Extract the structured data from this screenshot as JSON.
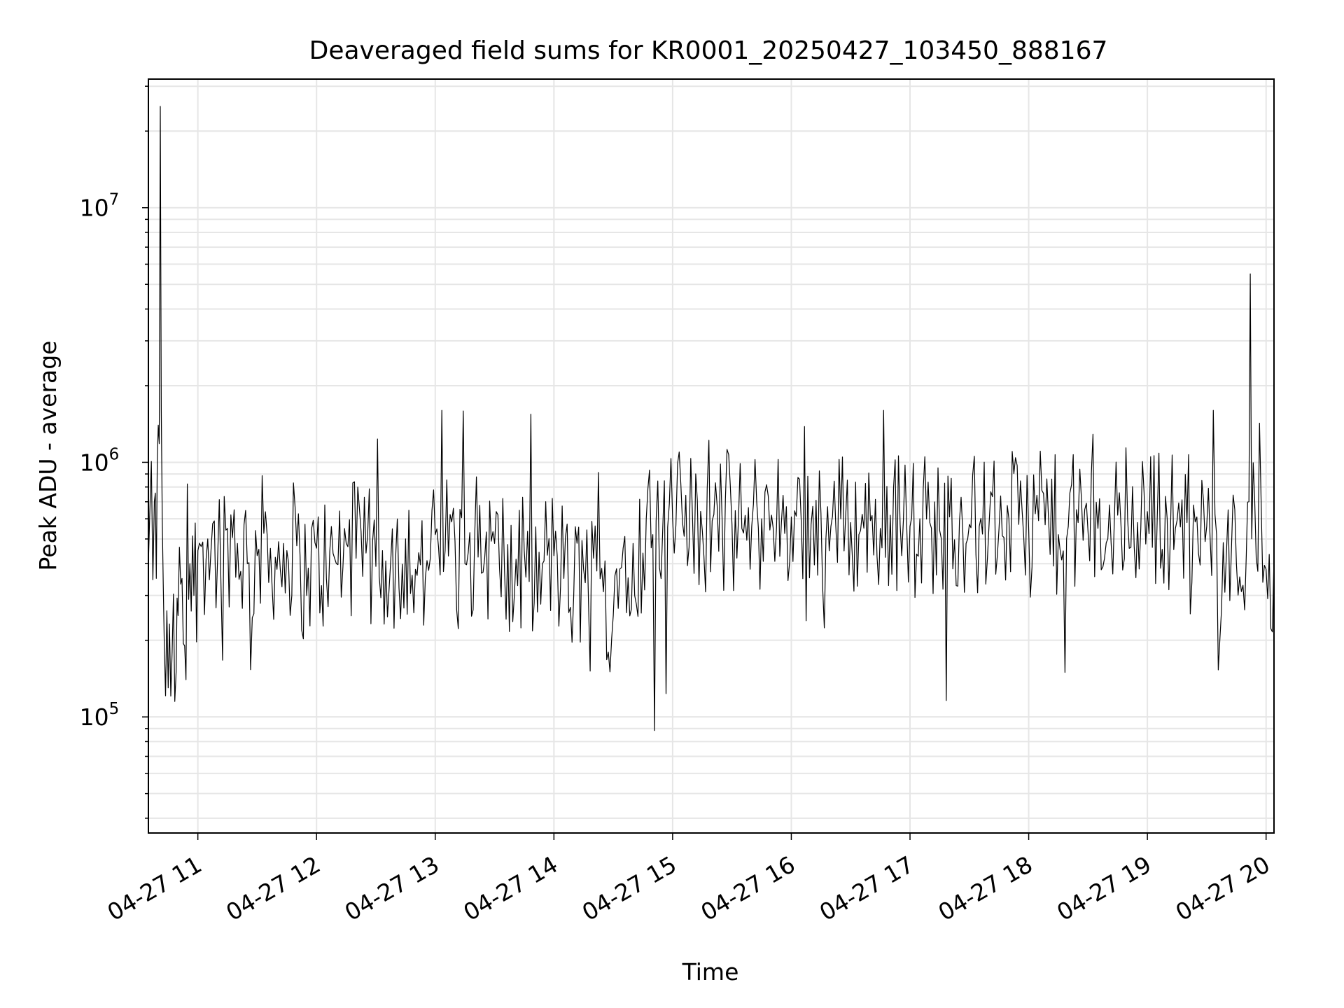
{
  "chart_data": {
    "type": "line",
    "title": "Deaveraged field sums for KR0001_20250427_103450_888167",
    "xlabel": "Time",
    "ylabel": "Peak ADU - average",
    "xlim": [
      "2025-04-27 10:35",
      "2025-04-27 20:04"
    ],
    "ylim": [
      35000,
      32000000
    ],
    "yscale": "log",
    "grid": true,
    "line_color": "#000000",
    "grid_color": "#e6e6e6",
    "x_ticks": [
      {
        "value": "2025-04-27 11:00",
        "label": "04-27 11"
      },
      {
        "value": "2025-04-27 12:00",
        "label": "04-27 12"
      },
      {
        "value": "2025-04-27 13:00",
        "label": "04-27 13"
      },
      {
        "value": "2025-04-27 14:00",
        "label": "04-27 14"
      },
      {
        "value": "2025-04-27 15:00",
        "label": "04-27 15"
      },
      {
        "value": "2025-04-27 16:00",
        "label": "04-27 16"
      },
      {
        "value": "2025-04-27 17:00",
        "label": "04-27 17"
      },
      {
        "value": "2025-04-27 18:00",
        "label": "04-27 18"
      },
      {
        "value": "2025-04-27 19:00",
        "label": "04-27 19"
      },
      {
        "value": "2025-04-27 20:00",
        "label": "04-27 20"
      }
    ],
    "y_ticks": [
      {
        "value": 100000,
        "base": "10",
        "exp": "5"
      },
      {
        "value": 1000000,
        "base": "10",
        "exp": "6"
      },
      {
        "value": 10000000,
        "base": "10",
        "exp": "7"
      }
    ],
    "series": [
      {
        "x": [
          "2025-04-27 10:35",
          "2025-04-27 10:38",
          "2025-04-27 10:39",
          "2025-04-27 10:40",
          "2025-04-27 10:41",
          "2025-04-27 10:42",
          "2025-04-27 10:43",
          "2025-04-27 10:45",
          "2025-04-27 10:47",
          "2025-04-27 10:49",
          "2025-04-27 10:50",
          "2025-04-27 10:52",
          "2025-04-27 10:54",
          "2025-04-27 10:56",
          "2025-04-27 10:58",
          "2025-04-27 11:00",
          "2025-04-27 11:05",
          "2025-04-27 11:10",
          "2025-04-27 11:15",
          "2025-04-27 11:20",
          "2025-04-27 11:25",
          "2025-04-27 11:30",
          "2025-04-27 11:35",
          "2025-04-27 11:40",
          "2025-04-27 11:45",
          "2025-04-27 11:50",
          "2025-04-27 11:55",
          "2025-04-27 12:00",
          "2025-04-27 12:05",
          "2025-04-27 12:10",
          "2025-04-27 12:15",
          "2025-04-27 12:20",
          "2025-04-27 12:25",
          "2025-04-27 12:30",
          "2025-04-27 12:35",
          "2025-04-27 12:40",
          "2025-04-27 12:45",
          "2025-04-27 12:50",
          "2025-04-27 12:55",
          "2025-04-27 13:00",
          "2025-04-27 13:05",
          "2025-04-27 13:10",
          "2025-04-27 13:15",
          "2025-04-27 13:20",
          "2025-04-27 13:25",
          "2025-04-27 13:30",
          "2025-04-27 13:35",
          "2025-04-27 13:40",
          "2025-04-27 13:45",
          "2025-04-27 13:50",
          "2025-04-27 13:55",
          "2025-04-27 14:00",
          "2025-04-27 14:05",
          "2025-04-27 14:10",
          "2025-04-27 14:15",
          "2025-04-27 14:20",
          "2025-04-27 14:25",
          "2025-04-27 14:30",
          "2025-04-27 14:35",
          "2025-04-27 14:40",
          "2025-04-27 14:45",
          "2025-04-27 14:50",
          "2025-04-27 14:55",
          "2025-04-27 15:00",
          "2025-04-27 15:05",
          "2025-04-27 15:10",
          "2025-04-27 15:15",
          "2025-04-27 15:20",
          "2025-04-27 15:25",
          "2025-04-27 15:30",
          "2025-04-27 15:35",
          "2025-04-27 15:40",
          "2025-04-27 15:45",
          "2025-04-27 15:50",
          "2025-04-27 15:55",
          "2025-04-27 16:00",
          "2025-04-27 16:05",
          "2025-04-27 16:10",
          "2025-04-27 16:15",
          "2025-04-27 16:20",
          "2025-04-27 16:25",
          "2025-04-27 16:30",
          "2025-04-27 16:35",
          "2025-04-27 16:40",
          "2025-04-27 16:45",
          "2025-04-27 16:50",
          "2025-04-27 16:55",
          "2025-04-27 17:00",
          "2025-04-27 17:05",
          "2025-04-27 17:10",
          "2025-04-27 17:15",
          "2025-04-27 17:20",
          "2025-04-27 17:25",
          "2025-04-27 17:30",
          "2025-04-27 17:35",
          "2025-04-27 17:40",
          "2025-04-27 17:45",
          "2025-04-27 17:50",
          "2025-04-27 17:55",
          "2025-04-27 18:00",
          "2025-04-27 18:05",
          "2025-04-27 18:10",
          "2025-04-27 18:15",
          "2025-04-27 18:20",
          "2025-04-27 18:25",
          "2025-04-27 18:30",
          "2025-04-27 18:35",
          "2025-04-27 18:40",
          "2025-04-27 18:45",
          "2025-04-27 18:50",
          "2025-04-27 18:55",
          "2025-04-27 19:00",
          "2025-04-27 19:05",
          "2025-04-27 19:10",
          "2025-04-27 19:15",
          "2025-04-27 19:20",
          "2025-04-27 19:25",
          "2025-04-27 19:30",
          "2025-04-27 19:35",
          "2025-04-27 19:40",
          "2025-04-27 19:45",
          "2025-04-27 19:50",
          "2025-04-27 19:52",
          "2025-04-27 19:55",
          "2025-04-27 20:00",
          "2025-04-27 20:04"
        ],
        "y": [
          400000,
          700000,
          350000,
          1400000,
          25000000,
          600000,
          200000,
          130000,
          180000,
          150000,
          250000,
          350000,
          140000,
          400000,
          300000,
          450000,
          500000,
          420000,
          550000,
          480000,
          400000,
          430000,
          520000,
          380000,
          450000,
          470000,
          300000,
          460000,
          350000,
          400000,
          480000,
          420000,
          440000,
          390000,
          410000,
          430000,
          500000,
          380000,
          350000,
          520000,
          450000,
          490000,
          400000,
          530000,
          420000,
          480000,
          380000,
          300000,
          450000,
          280000,
          410000,
          430000,
          350000,
          300000,
          380000,
          420000,
          310000,
          250000,
          460000,
          480000,
          440000,
          520000,
          550000,
          600000,
          580000,
          620000,
          540000,
          590000,
          610000,
          570000,
          550000,
          560000,
          600000,
          620000,
          580000,
          610000,
          590000,
          570000,
          630000,
          560000,
          600000,
          580000,
          540000,
          590000,
          550000,
          620000,
          570000,
          560000,
          600000,
          580000,
          540000,
          610000,
          590000,
          570000,
          560000,
          580000,
          550000,
          600000,
          570000,
          540000,
          590000,
          610000,
          520000,
          560000,
          580000,
          530000,
          550000,
          500000,
          620000,
          600000,
          580000,
          640000,
          620000,
          600000,
          590000,
          580000,
          610000,
          560000,
          520000,
          450000,
          400000,
          430000,
          5500000,
          420000,
          380000,
          420000
        ]
      }
    ],
    "texture_note_range": {
      "low": 50000,
      "high": 1600000
    }
  }
}
